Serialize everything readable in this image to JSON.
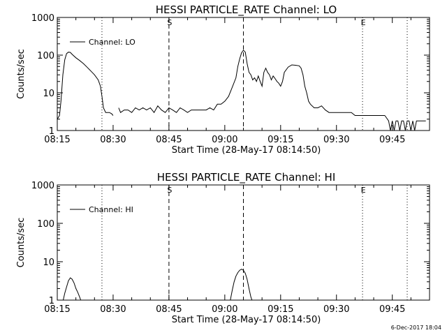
{
  "footer": {
    "timestamp": "6-Dec-2017 18:04"
  },
  "chart_data": [
    {
      "type": "line",
      "title": "HESSI PARTICLE_RATE Channel: LO",
      "xlabel": "Start Time (28-May-17 08:14:50)",
      "ylabel": "Counts/sec",
      "yscale": "log",
      "ylim": [
        1,
        1000
      ],
      "xlim_minutes_after_0815": [
        0,
        100
      ],
      "xticks": [
        "08:15",
        "08:30",
        "08:45",
        "09:00",
        "09:15",
        "09:30",
        "09:45"
      ],
      "yticks": [
        "1",
        "10",
        "100",
        "1000"
      ],
      "legend": "Channel: LO",
      "legend_position": "top-left",
      "markers": [
        {
          "label": "S",
          "t": "08:45",
          "style": "dashed"
        },
        {
          "label": "",
          "t": "09:05",
          "style": "dashed"
        },
        {
          "label": "",
          "t": "08:27",
          "style": "dotted"
        },
        {
          "label": "E",
          "t": "09:37",
          "style": "dotted"
        },
        {
          "label": "",
          "t": "09:49",
          "style": "dotted"
        }
      ],
      "series": [
        {
          "name": "Channel: LO",
          "segments": [
            [
              [
                0,
                2
              ],
              [
                0.6,
                2.5
              ],
              [
                1,
                6
              ],
              [
                1.5,
                30
              ],
              [
                2,
                75
              ],
              [
                2.5,
                110
              ],
              [
                3,
                120
              ],
              [
                3.5,
                118
              ],
              [
                4,
                105
              ],
              [
                5,
                85
              ],
              [
                6,
                72
              ],
              [
                7,
                60
              ],
              [
                8,
                48
              ],
              [
                9,
                38
              ],
              [
                10,
                30
              ],
              [
                11,
                22
              ],
              [
                11.6,
                15
              ],
              [
                12,
                8
              ],
              [
                12.4,
                4
              ],
              [
                13,
                3
              ],
              [
                14,
                3
              ],
              [
                14.6,
                2.8
              ],
              [
                15,
                2.5
              ]
            ],
            [
              [
                16.5,
                4
              ],
              [
                17,
                3
              ],
              [
                18,
                3.5
              ],
              [
                19,
                3.5
              ],
              [
                20,
                3
              ],
              [
                21,
                4
              ],
              [
                22,
                3.5
              ],
              [
                23,
                4
              ],
              [
                24,
                3.5
              ],
              [
                25,
                4
              ],
              [
                26,
                3
              ],
              [
                27,
                4.5
              ],
              [
                28,
                3.5
              ],
              [
                29,
                3
              ],
              [
                30,
                4
              ],
              [
                31,
                3.5
              ],
              [
                32,
                3
              ],
              [
                33,
                4
              ],
              [
                34,
                3.5
              ],
              [
                35,
                3
              ],
              [
                36,
                3.5
              ],
              [
                37,
                3.5
              ],
              [
                38,
                3.5
              ],
              [
                39,
                3.5
              ],
              [
                40,
                3.5
              ],
              [
                41,
                4
              ],
              [
                42,
                3.5
              ],
              [
                43,
                5
              ],
              [
                44,
                5
              ],
              [
                45,
                6
              ],
              [
                46,
                8
              ],
              [
                47,
                14
              ],
              [
                48,
                25
              ],
              [
                48.5,
                50
              ],
              [
                49,
                80
              ],
              [
                49.5,
                115
              ],
              [
                50,
                135
              ],
              [
                50.5,
                120
              ],
              [
                51,
                60
              ],
              [
                51.5,
                35
              ],
              [
                52,
                30
              ],
              [
                52.5,
                22
              ],
              [
                53,
                25
              ],
              [
                53.5,
                20
              ],
              [
                54,
                28
              ],
              [
                54.5,
                20
              ],
              [
                55,
                15
              ],
              [
                55.5,
                35
              ],
              [
                56,
                45
              ],
              [
                56.5,
                35
              ],
              [
                57,
                30
              ],
              [
                57.5,
                22
              ],
              [
                58,
                28
              ],
              [
                58.5,
                24
              ],
              [
                59,
                20
              ],
              [
                59.5,
                18
              ],
              [
                60,
                15
              ],
              [
                60.5,
                20
              ],
              [
                61,
                35
              ],
              [
                62,
                48
              ],
              [
                63,
                55
              ],
              [
                64,
                54
              ],
              [
                65,
                52
              ],
              [
                65.5,
                45
              ],
              [
                66,
                30
              ],
              [
                66.5,
                15
              ],
              [
                67,
                10
              ],
              [
                67.5,
                6
              ],
              [
                68,
                5
              ],
              [
                69,
                4
              ],
              [
                70,
                4
              ],
              [
                71,
                4.5
              ],
              [
                72,
                3.5
              ],
              [
                73,
                3
              ],
              [
                74,
                3
              ],
              [
                75,
                3
              ],
              [
                76,
                3
              ],
              [
                77,
                3
              ],
              [
                78,
                3
              ],
              [
                78.5,
                3
              ],
              [
                79,
                3
              ],
              [
                80,
                2.5
              ],
              [
                81,
                2.5
              ],
              [
                82,
                2.5
              ],
              [
                83,
                2.5
              ],
              [
                84,
                2.5
              ],
              [
                85,
                2.5
              ],
              [
                86,
                2.5
              ],
              [
                87,
                2.5
              ],
              [
                88,
                2.5
              ]
            ],
            [
              [
                88,
                2.5
              ],
              [
                89,
                1.8
              ],
              [
                89.5,
                1
              ],
              [
                90,
                1.8
              ],
              [
                90.5,
                1
              ],
              [
                91,
                1.8
              ],
              [
                91.5,
                1.8
              ],
              [
                92,
                1
              ],
              [
                92.5,
                1.8
              ],
              [
                93,
                1.8
              ],
              [
                93.5,
                1
              ],
              [
                94,
                1.8
              ],
              [
                94.5,
                1.8
              ],
              [
                95,
                1
              ],
              [
                95.5,
                1.8
              ],
              [
                96,
                1
              ],
              [
                96.5,
                1.8
              ],
              [
                97,
                1.8
              ],
              [
                98,
                1.8
              ],
              [
                99,
                1.8
              ]
            ]
          ]
        }
      ]
    },
    {
      "type": "line",
      "title": "HESSI PARTICLE_RATE Channel: HI",
      "xlabel": "Start Time (28-May-17 08:14:50)",
      "ylabel": "Counts/sec",
      "yscale": "log",
      "ylim": [
        1,
        1000
      ],
      "xlim_minutes_after_0815": [
        0,
        100
      ],
      "xticks": [
        "08:15",
        "08:30",
        "08:45",
        "09:00",
        "09:15",
        "09:30",
        "09:45"
      ],
      "yticks": [
        "1",
        "10",
        "100",
        "1000"
      ],
      "legend": "Channel: HI",
      "legend_position": "top-left",
      "markers": [
        {
          "label": "S",
          "t": "08:45",
          "style": "dashed"
        },
        {
          "label": "",
          "t": "09:05",
          "style": "dashed"
        },
        {
          "label": "",
          "t": "08:27",
          "style": "dotted"
        },
        {
          "label": "E",
          "t": "09:37",
          "style": "dotted"
        },
        {
          "label": "",
          "t": "09:49",
          "style": "dotted"
        }
      ],
      "series": [
        {
          "name": "Channel: HI",
          "segments": [
            [
              [
                1.6,
                1
              ],
              [
                2,
                1.5
              ],
              [
                2.5,
                2.2
              ],
              [
                3,
                3.2
              ],
              [
                3.5,
                3.8
              ],
              [
                4,
                3.5
              ],
              [
                4.5,
                2.8
              ],
              [
                5,
                2
              ],
              [
                5.5,
                1.6
              ],
              [
                6,
                1.2
              ],
              [
                6.3,
                1
              ]
            ],
            [
              [
                46.5,
                1
              ],
              [
                47,
                1.8
              ],
              [
                47.5,
                3
              ],
              [
                48,
                4.2
              ],
              [
                48.5,
                5.2
              ],
              [
                49,
                6
              ],
              [
                49.5,
                6.4
              ],
              [
                50,
                6
              ],
              [
                50.5,
                5
              ],
              [
                51,
                3.5
              ],
              [
                51.5,
                2
              ],
              [
                52,
                1.2
              ],
              [
                52.3,
                1
              ]
            ]
          ]
        }
      ]
    }
  ]
}
